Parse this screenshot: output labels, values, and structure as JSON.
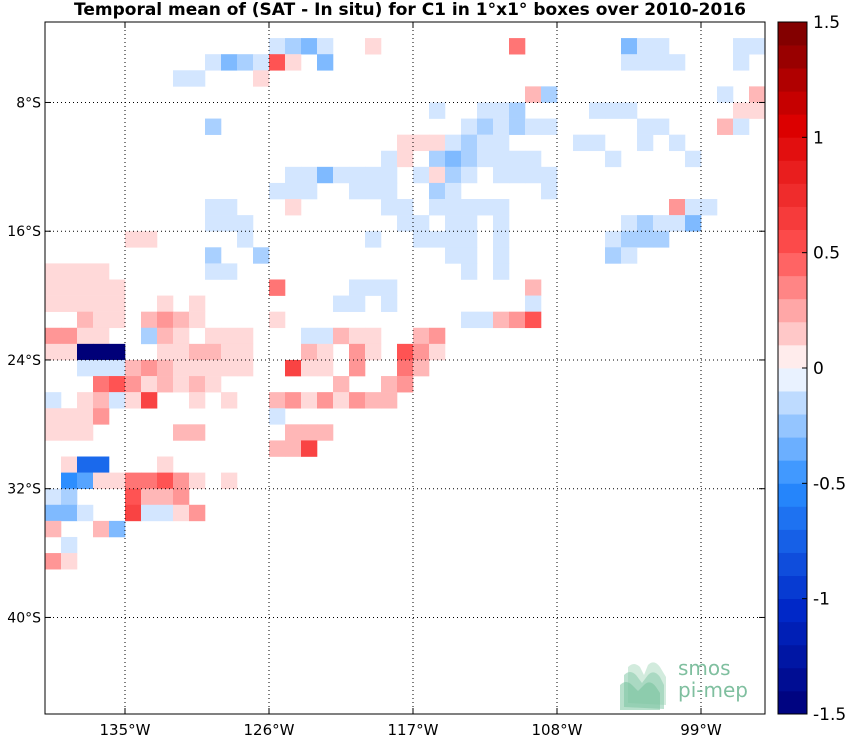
{
  "chart_data": {
    "type": "heatmap",
    "title": "Temporal mean of (SAT - In situ) for C1 in 1°x1° boxes over 2010-2016",
    "xlabel": "",
    "ylabel": "",
    "x_range": [
      -140,
      -95
    ],
    "y_range": [
      -46,
      -3
    ],
    "x_ticks": [
      {
        "value": -135,
        "label": "135°W"
      },
      {
        "value": -126,
        "label": "126°W"
      },
      {
        "value": -117,
        "label": "117°W"
      },
      {
        "value": -108,
        "label": "108°W"
      },
      {
        "value": -99,
        "label": "99°W"
      }
    ],
    "y_ticks": [
      {
        "value": -8,
        "label": "8°S"
      },
      {
        "value": -16,
        "label": "16°S"
      },
      {
        "value": -24,
        "label": "24°S"
      },
      {
        "value": -32,
        "label": "32°S"
      },
      {
        "value": -40,
        "label": "40°S"
      }
    ],
    "grid": true,
    "colorbar": {
      "range": [
        -1.5,
        1.5
      ],
      "ticks": [
        {
          "value": 1.5,
          "label": "1.5"
        },
        {
          "value": 1,
          "label": "1"
        },
        {
          "value": 0.5,
          "label": "0.5"
        },
        {
          "value": 0,
          "label": "0"
        },
        {
          "value": -0.5,
          "label": "-0.5"
        },
        {
          "value": -1,
          "label": "-1"
        },
        {
          "value": -1.5,
          "label": "-1.5"
        }
      ],
      "levels": 30
    },
    "cells": [
      [
        -126,
        -4,
        -0.1
      ],
      [
        -125,
        -4,
        -0.2
      ],
      [
        -124,
        -4,
        -0.3
      ],
      [
        -123,
        -4,
        -0.1
      ],
      [
        -120,
        -4,
        0.1
      ],
      [
        -111,
        -4,
        0.4
      ],
      [
        -104,
        -4,
        -0.3
      ],
      [
        -103,
        -4,
        -0.1
      ],
      [
        -102,
        -4,
        -0.1
      ],
      [
        -97,
        -4,
        -0.1
      ],
      [
        -96,
        -4,
        -0.1
      ],
      [
        -130,
        -5,
        -0.1
      ],
      [
        -129,
        -5,
        -0.3
      ],
      [
        -128,
        -5,
        -0.2
      ],
      [
        -127,
        -5,
        -0.1
      ],
      [
        -126,
        -5,
        0.5
      ],
      [
        -125,
        -5,
        0.1
      ],
      [
        -123,
        -5,
        -0.3
      ],
      [
        -104,
        -5,
        -0.1
      ],
      [
        -103,
        -5,
        -0.1
      ],
      [
        -102,
        -5,
        -0.1
      ],
      [
        -101,
        -5,
        -0.1
      ],
      [
        -97,
        -5,
        -0.1
      ],
      [
        -132,
        -6,
        -0.1
      ],
      [
        -131,
        -6,
        -0.1
      ],
      [
        -127,
        -6,
        0.1
      ],
      [
        -110,
        -7,
        0.2
      ],
      [
        -109,
        -7,
        -0.2
      ],
      [
        -98,
        -7,
        -0.1
      ],
      [
        -96,
        -7,
        0.2
      ],
      [
        -116,
        -8,
        -0.1
      ],
      [
        -113,
        -8,
        -0.1
      ],
      [
        -112,
        -8,
        -0.1
      ],
      [
        -111,
        -8,
        -0.2
      ],
      [
        -106,
        -8,
        -0.1
      ],
      [
        -105,
        -8,
        -0.1
      ],
      [
        -104,
        -8,
        -0.1
      ],
      [
        -97,
        -8,
        0.1
      ],
      [
        -96,
        -8,
        0.1
      ],
      [
        -130,
        -9,
        -0.2
      ],
      [
        -114,
        -9,
        -0.1
      ],
      [
        -113,
        -9,
        -0.2
      ],
      [
        -112,
        -9,
        -0.1
      ],
      [
        -111,
        -9,
        -0.2
      ],
      [
        -110,
        -9,
        -0.1
      ],
      [
        -109,
        -9,
        -0.1
      ],
      [
        -103,
        -9,
        -0.1
      ],
      [
        -102,
        -9,
        -0.1
      ],
      [
        -98,
        -9,
        0.2
      ],
      [
        -97,
        -9,
        -0.1
      ],
      [
        -118,
        -10,
        0.1
      ],
      [
        -117,
        -10,
        0.1
      ],
      [
        -116,
        -10,
        0.1
      ],
      [
        -115,
        -10,
        -0.1
      ],
      [
        -114,
        -10,
        -0.2
      ],
      [
        -113,
        -10,
        -0.1
      ],
      [
        -112,
        -10,
        -0.1
      ],
      [
        -107,
        -10,
        -0.1
      ],
      [
        -106,
        -10,
        -0.1
      ],
      [
        -103,
        -10,
        -0.1
      ],
      [
        -101,
        -10,
        -0.1
      ],
      [
        -119,
        -11,
        -0.1
      ],
      [
        -118,
        -11,
        0.1
      ],
      [
        -116,
        -11,
        -0.2
      ],
      [
        -115,
        -11,
        -0.3
      ],
      [
        -114,
        -11,
        -0.2
      ],
      [
        -113,
        -11,
        -0.1
      ],
      [
        -112,
        -11,
        -0.1
      ],
      [
        -111,
        -11,
        -0.1
      ],
      [
        -110,
        -11,
        -0.1
      ],
      [
        -105,
        -11,
        -0.1
      ],
      [
        -100,
        -11,
        -0.1
      ],
      [
        -125,
        -12,
        -0.1
      ],
      [
        -124,
        -12,
        -0.1
      ],
      [
        -123,
        -12,
        -0.3
      ],
      [
        -122,
        -12,
        -0.1
      ],
      [
        -121,
        -12,
        -0.1
      ],
      [
        -120,
        -12,
        -0.1
      ],
      [
        -119,
        -12,
        -0.1
      ],
      [
        -117,
        -12,
        -0.1
      ],
      [
        -116,
        -12,
        0.1
      ],
      [
        -115,
        -12,
        -0.2
      ],
      [
        -114,
        -12,
        -0.1
      ],
      [
        -112,
        -12,
        -0.1
      ],
      [
        -111,
        -12,
        -0.1
      ],
      [
        -110,
        -12,
        -0.1
      ],
      [
        -109,
        -12,
        -0.1
      ],
      [
        -126,
        -13,
        -0.1
      ],
      [
        -125,
        -13,
        -0.1
      ],
      [
        -124,
        -13,
        -0.1
      ],
      [
        -121,
        -13,
        -0.1
      ],
      [
        -120,
        -13,
        -0.1
      ],
      [
        -119,
        -13,
        -0.1
      ],
      [
        -116,
        -13,
        -0.2
      ],
      [
        -115,
        -13,
        -0.1
      ],
      [
        -109,
        -13,
        -0.1
      ],
      [
        -130,
        -14,
        -0.1
      ],
      [
        -129,
        -14,
        -0.1
      ],
      [
        -125,
        -14,
        0.1
      ],
      [
        -119,
        -14,
        -0.1
      ],
      [
        -118,
        -14,
        -0.1
      ],
      [
        -116,
        -14,
        -0.1
      ],
      [
        -115,
        -14,
        -0.1
      ],
      [
        -114,
        -14,
        -0.1
      ],
      [
        -113,
        -14,
        -0.1
      ],
      [
        -112,
        -14,
        -0.1
      ],
      [
        -101,
        -14,
        0.3
      ],
      [
        -100,
        -14,
        -0.1
      ],
      [
        -99,
        -14,
        -0.1
      ],
      [
        -130,
        -15,
        -0.1
      ],
      [
        -129,
        -15,
        -0.1
      ],
      [
        -128,
        -15,
        -0.1
      ],
      [
        -118,
        -15,
        -0.1
      ],
      [
        -117,
        -15,
        -0.1
      ],
      [
        -115,
        -15,
        -0.1
      ],
      [
        -114,
        -15,
        -0.1
      ],
      [
        -112,
        -15,
        -0.1
      ],
      [
        -104,
        -15,
        -0.1
      ],
      [
        -103,
        -15,
        -0.2
      ],
      [
        -102,
        -15,
        -0.1
      ],
      [
        -101,
        -15,
        -0.1
      ],
      [
        -100,
        -15,
        -0.3
      ],
      [
        -135,
        -16,
        0.1
      ],
      [
        -134,
        -16,
        0.1
      ],
      [
        -128,
        -16,
        -0.1
      ],
      [
        -120,
        -16,
        -0.1
      ],
      [
        -117,
        -16,
        -0.1
      ],
      [
        -116,
        -16,
        -0.1
      ],
      [
        -115,
        -16,
        -0.1
      ],
      [
        -114,
        -16,
        -0.1
      ],
      [
        -112,
        -16,
        -0.1
      ],
      [
        -105,
        -16,
        -0.1
      ],
      [
        -104,
        -16,
        -0.2
      ],
      [
        -103,
        -16,
        -0.2
      ],
      [
        -102,
        -16,
        -0.2
      ],
      [
        -130,
        -17,
        -0.2
      ],
      [
        -127,
        -17,
        -0.2
      ],
      [
        -115,
        -17,
        -0.1
      ],
      [
        -114,
        -17,
        -0.1
      ],
      [
        -112,
        -17,
        -0.1
      ],
      [
        -105,
        -17,
        -0.2
      ],
      [
        -104,
        -17,
        -0.1
      ],
      [
        -140,
        -18,
        0.1
      ],
      [
        -139,
        -18,
        0.1
      ],
      [
        -138,
        -18,
        0.1
      ],
      [
        -137,
        -18,
        0.1
      ],
      [
        -130,
        -18,
        -0.1
      ],
      [
        -129,
        -18,
        -0.1
      ],
      [
        -114,
        -18,
        -0.1
      ],
      [
        -112,
        -18,
        -0.1
      ],
      [
        -140,
        -19,
        0.1
      ],
      [
        -139,
        -19,
        0.1
      ],
      [
        -138,
        -19,
        0.1
      ],
      [
        -137,
        -19,
        0.1
      ],
      [
        -136,
        -19,
        0.1
      ],
      [
        -126,
        -19,
        0.4
      ],
      [
        -121,
        -19,
        -0.1
      ],
      [
        -120,
        -19,
        -0.1
      ],
      [
        -119,
        -19,
        -0.1
      ],
      [
        -110,
        -19,
        0.2
      ],
      [
        -140,
        -20,
        0.1
      ],
      [
        -139,
        -20,
        0.1
      ],
      [
        -138,
        -20,
        0.1
      ],
      [
        -137,
        -20,
        0.1
      ],
      [
        -136,
        -20,
        0.1
      ],
      [
        -133,
        -20,
        0.1
      ],
      [
        -131,
        -20,
        0.1
      ],
      [
        -122,
        -20,
        -0.1
      ],
      [
        -121,
        -20,
        -0.1
      ],
      [
        -119,
        -20,
        -0.1
      ],
      [
        -110,
        -20,
        -0.1
      ],
      [
        -138,
        -21,
        0.2
      ],
      [
        -137,
        -21,
        0.1
      ],
      [
        -136,
        -21,
        0.1
      ],
      [
        -134,
        -21,
        0.2
      ],
      [
        -133,
        -21,
        0.3
      ],
      [
        -132,
        -21,
        0.2
      ],
      [
        -131,
        -21,
        0.1
      ],
      [
        -126,
        -21,
        0.1
      ],
      [
        -114,
        -21,
        -0.1
      ],
      [
        -113,
        -21,
        -0.1
      ],
      [
        -112,
        -21,
        0.2
      ],
      [
        -111,
        -21,
        0.3
      ],
      [
        -110,
        -21,
        0.5
      ],
      [
        -140,
        -22,
        0.3
      ],
      [
        -139,
        -22,
        0.3
      ],
      [
        -138,
        -22,
        0.1
      ],
      [
        -137,
        -22,
        0.1
      ],
      [
        -134,
        -22,
        -0.2
      ],
      [
        -133,
        -22,
        0.2
      ],
      [
        -132,
        -22,
        0.1
      ],
      [
        -130,
        -22,
        0.1
      ],
      [
        -129,
        -22,
        0.1
      ],
      [
        -128,
        -22,
        0.1
      ],
      [
        -124,
        -22,
        -0.1
      ],
      [
        -123,
        -22,
        -0.1
      ],
      [
        -122,
        -22,
        0.2
      ],
      [
        -121,
        -22,
        0.1
      ],
      [
        -120,
        -22,
        0.1
      ],
      [
        -117,
        -22,
        0.2
      ],
      [
        -116,
        -22,
        0.3
      ],
      [
        -140,
        -23,
        0.1
      ],
      [
        -139,
        -23,
        0.1
      ],
      [
        -138,
        -23,
        -1.5
      ],
      [
        -137,
        -23,
        -1.5
      ],
      [
        -136,
        -23,
        -1.5
      ],
      [
        -133,
        -23,
        0.1
      ],
      [
        -132,
        -23,
        0.1
      ],
      [
        -131,
        -23,
        0.2
      ],
      [
        -130,
        -23,
        0.2
      ],
      [
        -129,
        -23,
        0.1
      ],
      [
        -128,
        -23,
        0.1
      ],
      [
        -124,
        -23,
        0.2
      ],
      [
        -123,
        -23,
        0.1
      ],
      [
        -121,
        -23,
        0.3
      ],
      [
        -120,
        -23,
        0.1
      ],
      [
        -118,
        -23,
        0.5
      ],
      [
        -117,
        -23,
        0.3
      ],
      [
        -116,
        -23,
        0.1
      ],
      [
        -138,
        -24,
        -0.1
      ],
      [
        -137,
        -24,
        -0.1
      ],
      [
        -136,
        -24,
        -0.1
      ],
      [
        -135,
        -24,
        0.2
      ],
      [
        -134,
        -24,
        0.3
      ],
      [
        -133,
        -24,
        0.2
      ],
      [
        -132,
        -24,
        0.1
      ],
      [
        -131,
        -24,
        0.1
      ],
      [
        -130,
        -24,
        0.1
      ],
      [
        -129,
        -24,
        0.1
      ],
      [
        -128,
        -24,
        0.1
      ],
      [
        -125,
        -24,
        0.6
      ],
      [
        -124,
        -24,
        0.1
      ],
      [
        -123,
        -24,
        0.1
      ],
      [
        -121,
        -24,
        0.3
      ],
      [
        -118,
        -24,
        0.4
      ],
      [
        -117,
        -24,
        0.2
      ],
      [
        -137,
        -25,
        0.4
      ],
      [
        -136,
        -25,
        0.5
      ],
      [
        -135,
        -25,
        0.3
      ],
      [
        -134,
        -25,
        0.1
      ],
      [
        -133,
        -25,
        0.2
      ],
      [
        -132,
        -25,
        0.1
      ],
      [
        -131,
        -25,
        0.2
      ],
      [
        -130,
        -25,
        0.1
      ],
      [
        -122,
        -25,
        0.2
      ],
      [
        -119,
        -25,
        0.2
      ],
      [
        -118,
        -25,
        0.3
      ],
      [
        -140,
        -26,
        -0.1
      ],
      [
        -138,
        -26,
        0.1
      ],
      [
        -137,
        -26,
        0.2
      ],
      [
        -136,
        -26,
        -0.1
      ],
      [
        -135,
        -26,
        0.1
      ],
      [
        -134,
        -26,
        0.6
      ],
      [
        -131,
        -26,
        0.1
      ],
      [
        -129,
        -26,
        0.1
      ],
      [
        -126,
        -26,
        0.2
      ],
      [
        -125,
        -26,
        0.3
      ],
      [
        -124,
        -26,
        0.1
      ],
      [
        -123,
        -26,
        0.3
      ],
      [
        -122,
        -26,
        0.1
      ],
      [
        -121,
        -26,
        0.3
      ],
      [
        -120,
        -26,
        0.2
      ],
      [
        -119,
        -26,
        0.2
      ],
      [
        -140,
        -27,
        0.1
      ],
      [
        -139,
        -27,
        0.1
      ],
      [
        -138,
        -27,
        0.1
      ],
      [
        -137,
        -27,
        0.3
      ],
      [
        -126,
        -27,
        -0.1
      ],
      [
        -140,
        -28,
        0.1
      ],
      [
        -139,
        -28,
        0.1
      ],
      [
        -138,
        -28,
        0.1
      ],
      [
        -132,
        -28,
        0.2
      ],
      [
        -131,
        -28,
        0.2
      ],
      [
        -125,
        -28,
        0.2
      ],
      [
        -124,
        -28,
        0.2
      ],
      [
        -123,
        -28,
        0.2
      ],
      [
        -126,
        -29,
        0.2
      ],
      [
        -125,
        -29,
        0.2
      ],
      [
        -124,
        -29,
        0.6
      ],
      [
        -139,
        -30,
        0.1
      ],
      [
        -138,
        -30,
        -0.7
      ],
      [
        -137,
        -30,
        -0.7
      ],
      [
        -133,
        -30,
        0.1
      ],
      [
        -139,
        -31,
        -0.5
      ],
      [
        -138,
        -31,
        -0.4
      ],
      [
        -137,
        -31,
        0.1
      ],
      [
        -136,
        -31,
        0.1
      ],
      [
        -135,
        -31,
        0.4
      ],
      [
        -134,
        -31,
        0.4
      ],
      [
        -133,
        -31,
        0.5
      ],
      [
        -132,
        -31,
        0.3
      ],
      [
        -131,
        -31,
        0.1
      ],
      [
        -129,
        -31,
        0.1
      ],
      [
        -140,
        -32,
        -0.1
      ],
      [
        -139,
        -32,
        -0.2
      ],
      [
        -135,
        -32,
        0.5
      ],
      [
        -134,
        -32,
        0.2
      ],
      [
        -133,
        -32,
        0.2
      ],
      [
        -132,
        -32,
        0.3
      ],
      [
        -140,
        -33,
        -0.3
      ],
      [
        -139,
        -33,
        -0.3
      ],
      [
        -138,
        -33,
        -0.1
      ],
      [
        -135,
        -33,
        0.6
      ],
      [
        -134,
        -33,
        -0.1
      ],
      [
        -133,
        -33,
        -0.1
      ],
      [
        -132,
        -33,
        0.1
      ],
      [
        -131,
        -33,
        0.3
      ],
      [
        -140,
        -34,
        0.2
      ],
      [
        -137,
        -34,
        0.2
      ],
      [
        -136,
        -34,
        -0.3
      ],
      [
        -139,
        -35,
        -0.1
      ],
      [
        -140,
        -36,
        0.3
      ],
      [
        -139,
        -36,
        0.1
      ]
    ]
  },
  "logo": {
    "line1": "smos",
    "line2": "pi-mep"
  }
}
